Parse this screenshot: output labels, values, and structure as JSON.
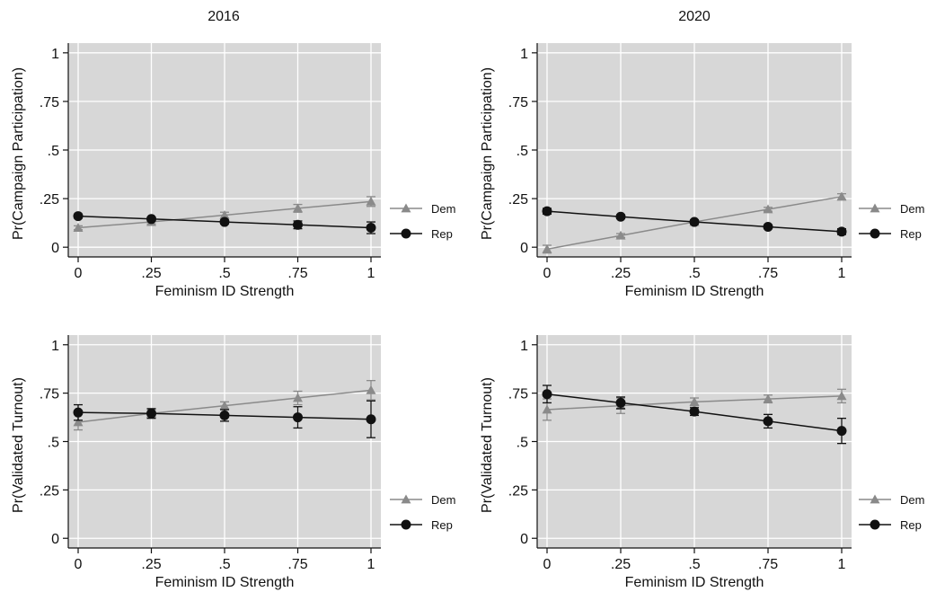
{
  "columns": [
    "2016",
    "2020"
  ],
  "colors": {
    "dem": "#8a8a8a",
    "rep": "#111111",
    "plot_bg": "#d7d7d7",
    "grid": "#ffffff"
  },
  "chart_data": [
    {
      "type": "line",
      "year": "2016",
      "title": "",
      "xlabel": "Feminism ID Strength",
      "ylabel": "Pr(Campaign Participation)",
      "xlim": [
        0,
        1
      ],
      "ylim": [
        -0.05,
        1.05
      ],
      "xticks": [
        0,
        0.25,
        0.5,
        0.75,
        1
      ],
      "xtick_labels": [
        "0",
        ".25",
        ".5",
        ".75",
        "1"
      ],
      "yticks": [
        0,
        0.25,
        0.5,
        0.75,
        1
      ],
      "ytick_labels": [
        "0",
        ".25",
        ".5",
        ".75",
        "1"
      ],
      "grid": true,
      "legend_position": "right",
      "x": [
        0,
        0.25,
        0.5,
        0.75,
        1
      ],
      "series": [
        {
          "name": "Dem",
          "marker": "triangle",
          "values": [
            0.1,
            0.13,
            0.165,
            0.2,
            0.235
          ],
          "ci_low": [
            0.09,
            0.12,
            0.15,
            0.18,
            0.21
          ],
          "ci_high": [
            0.11,
            0.14,
            0.18,
            0.22,
            0.26
          ]
        },
        {
          "name": "Rep",
          "marker": "circle",
          "values": [
            0.16,
            0.145,
            0.13,
            0.115,
            0.1
          ],
          "ci_low": [
            0.15,
            0.135,
            0.12,
            0.095,
            0.07
          ],
          "ci_high": [
            0.17,
            0.155,
            0.14,
            0.135,
            0.13
          ]
        }
      ]
    },
    {
      "type": "line",
      "year": "2020",
      "title": "",
      "xlabel": "Feminism ID Strength",
      "ylabel": "Pr(Campaign Participation)",
      "xlim": [
        0,
        1
      ],
      "ylim": [
        -0.05,
        1.05
      ],
      "xticks": [
        0,
        0.25,
        0.5,
        0.75,
        1
      ],
      "xtick_labels": [
        "0",
        ".25",
        ".5",
        ".75",
        "1"
      ],
      "yticks": [
        0,
        0.25,
        0.5,
        0.75,
        1
      ],
      "ytick_labels": [
        "0",
        ".25",
        ".5",
        ".75",
        "1"
      ],
      "grid": true,
      "legend_position": "right",
      "x": [
        0,
        0.25,
        0.5,
        0.75,
        1
      ],
      "series": [
        {
          "name": "Dem",
          "marker": "triangle",
          "values": [
            -0.01,
            0.06,
            0.13,
            0.195,
            0.26
          ],
          "ci_low": [
            -0.03,
            0.05,
            0.12,
            0.185,
            0.245
          ],
          "ci_high": [
            0.01,
            0.07,
            0.14,
            0.205,
            0.275
          ]
        },
        {
          "name": "Rep",
          "marker": "circle",
          "values": [
            0.185,
            0.157,
            0.13,
            0.105,
            0.08
          ],
          "ci_low": [
            0.17,
            0.147,
            0.12,
            0.095,
            0.065
          ],
          "ci_high": [
            0.2,
            0.167,
            0.14,
            0.115,
            0.095
          ]
        }
      ]
    },
    {
      "type": "line",
      "year": "2016",
      "title": "",
      "xlabel": "Feminism ID Strength",
      "ylabel": "Pr(Validated Turnout)",
      "xlim": [
        0,
        1
      ],
      "ylim": [
        -0.05,
        1.05
      ],
      "xticks": [
        0,
        0.25,
        0.5,
        0.75,
        1
      ],
      "xtick_labels": [
        "0",
        ".25",
        ".5",
        ".75",
        "1"
      ],
      "yticks": [
        0,
        0.25,
        0.5,
        0.75,
        1
      ],
      "ytick_labels": [
        "0",
        ".25",
        ".5",
        ".75",
        "1"
      ],
      "grid": true,
      "legend_position": "right",
      "x": [
        0,
        0.25,
        0.5,
        0.75,
        1
      ],
      "series": [
        {
          "name": "Dem",
          "marker": "triangle",
          "values": [
            0.6,
            0.645,
            0.685,
            0.725,
            0.765
          ],
          "ci_low": [
            0.56,
            0.625,
            0.665,
            0.69,
            0.715
          ],
          "ci_high": [
            0.64,
            0.665,
            0.705,
            0.76,
            0.815
          ]
        },
        {
          "name": "Rep",
          "marker": "circle",
          "values": [
            0.65,
            0.645,
            0.635,
            0.625,
            0.615
          ],
          "ci_low": [
            0.61,
            0.62,
            0.605,
            0.57,
            0.52
          ],
          "ci_high": [
            0.69,
            0.67,
            0.665,
            0.68,
            0.71
          ]
        }
      ]
    },
    {
      "type": "line",
      "year": "2020",
      "title": "",
      "xlabel": "Feminism ID Strength",
      "ylabel": "Pr(Validated Turnout)",
      "xlim": [
        0,
        1
      ],
      "ylim": [
        -0.05,
        1.05
      ],
      "xticks": [
        0,
        0.25,
        0.5,
        0.75,
        1
      ],
      "xtick_labels": [
        "0",
        ".25",
        ".5",
        ".75",
        "1"
      ],
      "yticks": [
        0,
        0.25,
        0.5,
        0.75,
        1
      ],
      "ytick_labels": [
        "0",
        ".25",
        ".5",
        ".75",
        "1"
      ],
      "grid": true,
      "legend_position": "right",
      "x": [
        0,
        0.25,
        0.5,
        0.75,
        1
      ],
      "series": [
        {
          "name": "Dem",
          "marker": "triangle",
          "values": [
            0.665,
            0.685,
            0.705,
            0.72,
            0.735
          ],
          "ci_low": [
            0.61,
            0.645,
            0.685,
            0.7,
            0.7
          ],
          "ci_high": [
            0.72,
            0.725,
            0.725,
            0.74,
            0.77
          ]
        },
        {
          "name": "Rep",
          "marker": "circle",
          "values": [
            0.745,
            0.7,
            0.655,
            0.605,
            0.555
          ],
          "ci_low": [
            0.7,
            0.67,
            0.635,
            0.57,
            0.49
          ],
          "ci_high": [
            0.79,
            0.73,
            0.675,
            0.64,
            0.62
          ]
        }
      ]
    }
  ]
}
